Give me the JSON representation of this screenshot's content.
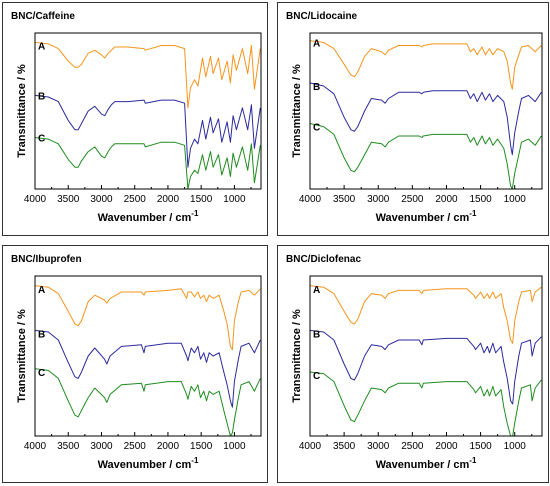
{
  "chart_data": [
    {
      "type": "line",
      "title": "BNC/Caffeine",
      "xlabel": "Wavenumber / cm",
      "xlabel_sup": "-1",
      "ylabel": "Transmittance / %",
      "xlim": [
        4000,
        600
      ],
      "xticks": [
        4000,
        3500,
        3000,
        2500,
        2000,
        1500,
        1000
      ],
      "ylim": [
        0,
        100
      ],
      "x": [
        4000,
        3800,
        3650,
        3500,
        3400,
        3350,
        3300,
        3200,
        3100,
        3000,
        2950,
        2900,
        2850,
        2800,
        2600,
        2360,
        2340,
        2100,
        1900,
        1750,
        1700,
        1660,
        1600,
        1550,
        1480,
        1430,
        1360,
        1320,
        1240,
        1190,
        1110,
        1060,
        1020,
        970,
        880,
        800,
        745,
        700,
        610
      ],
      "series": [
        {
          "name": "A",
          "color": "#f7941d",
          "values": [
            94,
            93,
            90,
            82,
            78,
            78,
            80,
            87,
            89,
            86,
            84,
            87,
            89,
            91,
            91,
            90,
            89,
            92,
            92,
            90,
            52,
            65,
            70,
            66,
            84,
            72,
            85,
            74,
            84,
            70,
            82,
            68,
            86,
            76,
            90,
            74,
            92,
            64,
            90
          ]
        },
        {
          "name": "B",
          "color": "#2b2a9e",
          "values": [
            60,
            59,
            56,
            44,
            38,
            38,
            42,
            50,
            53,
            48,
            47,
            51,
            54,
            56,
            56,
            57,
            55,
            57,
            57,
            55,
            14,
            26,
            32,
            29,
            44,
            32,
            46,
            36,
            45,
            30,
            43,
            30,
            47,
            38,
            52,
            38,
            54,
            26,
            52
          ]
        },
        {
          "name": "C",
          "color": "#1f8c1f",
          "values": [
            33,
            32,
            29,
            19,
            14,
            14,
            18,
            24,
            27,
            21,
            20,
            24,
            27,
            29,
            29,
            29,
            27,
            30,
            30,
            28,
            0,
            8,
            12,
            10,
            22,
            12,
            24,
            14,
            22,
            9,
            20,
            8,
            23,
            14,
            27,
            12,
            29,
            4,
            28
          ]
        }
      ],
      "series_label_y": [
        92,
        60,
        33
      ]
    },
    {
      "type": "line",
      "title": "BNC/Lidocaine",
      "xlabel": "Wavenumber / cm",
      "xlabel_sup": "-1",
      "ylabel": "Transmittance / %",
      "xlim": [
        4000,
        600
      ],
      "xticks": [
        4000,
        3500,
        3000,
        2500,
        2000,
        1500,
        1000
      ],
      "ylim": [
        0,
        100
      ],
      "x": [
        4000,
        3800,
        3650,
        3500,
        3400,
        3350,
        3300,
        3200,
        3100,
        2950,
        2900,
        2850,
        2700,
        2400,
        2360,
        2340,
        2200,
        1900,
        1700,
        1650,
        1600,
        1550,
        1480,
        1430,
        1370,
        1320,
        1250,
        1160,
        1110,
        1060,
        1035,
        1000,
        940,
        900,
        800,
        700,
        610
      ],
      "series": [
        {
          "name": "A",
          "color": "#f7941d",
          "values": [
            95,
            94,
            90,
            80,
            73,
            72,
            75,
            85,
            90,
            88,
            86,
            89,
            92,
            92,
            91,
            92,
            93,
            93,
            93,
            88,
            90,
            86,
            91,
            86,
            90,
            86,
            90,
            88,
            82,
            68,
            64,
            78,
            86,
            91,
            92,
            88,
            92
          ]
        },
        {
          "name": "B",
          "color": "#2b2a9e",
          "values": [
            68,
            66,
            61,
            46,
            38,
            37,
            40,
            50,
            58,
            57,
            55,
            58,
            62,
            62,
            61,
            62,
            63,
            63,
            63,
            58,
            61,
            56,
            62,
            57,
            61,
            56,
            60,
            56,
            46,
            28,
            22,
            36,
            50,
            58,
            60,
            56,
            62
          ]
        },
        {
          "name": "C",
          "color": "#1f8c1f",
          "values": [
            42,
            40,
            35,
            20,
            12,
            11,
            14,
            22,
            30,
            29,
            27,
            30,
            34,
            34,
            33,
            34,
            35,
            35,
            35,
            30,
            33,
            28,
            34,
            29,
            33,
            28,
            32,
            26,
            16,
            2,
            0,
            10,
            22,
            30,
            32,
            28,
            34
          ]
        }
      ],
      "series_label_y": [
        94,
        66,
        40
      ]
    },
    {
      "type": "line",
      "title": "BNC/Ibuprofen",
      "xlabel": "Wavenumber / cm",
      "xlabel_sup": "-1",
      "ylabel": "Transmittance / %",
      "xlim": [
        4000,
        600
      ],
      "xticks": [
        4000,
        3500,
        3000,
        2500,
        2000,
        1500,
        1000
      ],
      "ylim": [
        0,
        100
      ],
      "x": [
        4000,
        3800,
        3650,
        3500,
        3400,
        3350,
        3300,
        3200,
        3100,
        2955,
        2920,
        2870,
        2700,
        2400,
        2360,
        2340,
        2000,
        1800,
        1720,
        1700,
        1650,
        1600,
        1550,
        1510,
        1460,
        1420,
        1380,
        1320,
        1230,
        1160,
        1110,
        1060,
        1030,
        1000,
        940,
        900,
        780,
        700,
        610
      ],
      "series": [
        {
          "name": "A",
          "color": "#f7941d",
          "values": [
            94,
            93,
            89,
            78,
            70,
            69,
            72,
            84,
            88,
            85,
            83,
            86,
            90,
            90,
            88,
            90,
            91,
            92,
            86,
            90,
            90,
            87,
            90,
            86,
            88,
            84,
            88,
            86,
            88,
            78,
            70,
            56,
            54,
            72,
            84,
            90,
            91,
            88,
            92
          ]
        },
        {
          "name": "B",
          "color": "#2b2a9e",
          "values": [
            66,
            65,
            60,
            46,
            37,
            36,
            40,
            50,
            55,
            48,
            45,
            50,
            56,
            57,
            52,
            56,
            58,
            58,
            50,
            47,
            55,
            52,
            56,
            48,
            52,
            46,
            52,
            50,
            52,
            40,
            32,
            22,
            18,
            34,
            48,
            56,
            58,
            52,
            60
          ]
        },
        {
          "name": "C",
          "color": "#1f8c1f",
          "values": [
            42,
            41,
            36,
            22,
            13,
            12,
            16,
            24,
            30,
            24,
            21,
            26,
            32,
            33,
            28,
            32,
            34,
            34,
            26,
            23,
            31,
            28,
            32,
            24,
            28,
            22,
            28,
            26,
            28,
            16,
            8,
            0,
            2,
            10,
            24,
            32,
            34,
            28,
            36
          ]
        }
      ],
      "series_label_y": [
        92,
        64,
        40
      ]
    },
    {
      "type": "line",
      "title": "BNC/Diclofenac",
      "xlabel": "Wavenumber / cm",
      "xlabel_sup": "-1",
      "ylabel": "Transmittance / %",
      "xlim": [
        4000,
        600
      ],
      "xticks": [
        4000,
        3500,
        3000,
        2500,
        2000,
        1500,
        1000
      ],
      "ylim": [
        0,
        100
      ],
      "x": [
        4000,
        3800,
        3650,
        3500,
        3400,
        3350,
        3300,
        3200,
        3100,
        2950,
        2900,
        2850,
        2700,
        2400,
        2360,
        2340,
        2000,
        1700,
        1600,
        1575,
        1500,
        1450,
        1400,
        1370,
        1320,
        1280,
        1200,
        1160,
        1110,
        1060,
        1030,
        1000,
        940,
        900,
        770,
        745,
        700,
        610
      ],
      "series": [
        {
          "name": "A",
          "color": "#f7941d",
          "values": [
            94,
            93,
            89,
            78,
            71,
            70,
            73,
            84,
            89,
            88,
            86,
            89,
            91,
            91,
            89,
            91,
            92,
            92,
            88,
            86,
            90,
            86,
            89,
            86,
            90,
            86,
            89,
            80,
            72,
            60,
            58,
            72,
            84,
            90,
            91,
            84,
            90,
            93
          ]
        },
        {
          "name": "B",
          "color": "#2b2a9e",
          "values": [
            66,
            65,
            60,
            45,
            36,
            35,
            39,
            50,
            57,
            56,
            54,
            57,
            60,
            60,
            57,
            60,
            61,
            61,
            56,
            54,
            58,
            52,
            56,
            52,
            58,
            52,
            56,
            46,
            36,
            22,
            20,
            34,
            50,
            58,
            60,
            50,
            58,
            62
          ]
        },
        {
          "name": "C",
          "color": "#1f8c1f",
          "values": [
            40,
            39,
            34,
            19,
            10,
            9,
            13,
            22,
            30,
            29,
            27,
            30,
            33,
            33,
            30,
            33,
            34,
            34,
            29,
            27,
            31,
            25,
            29,
            25,
            31,
            25,
            29,
            18,
            8,
            0,
            0,
            8,
            22,
            30,
            32,
            22,
            30,
            35
          ]
        }
      ],
      "series_label_y": [
        92,
        64,
        38
      ]
    }
  ]
}
